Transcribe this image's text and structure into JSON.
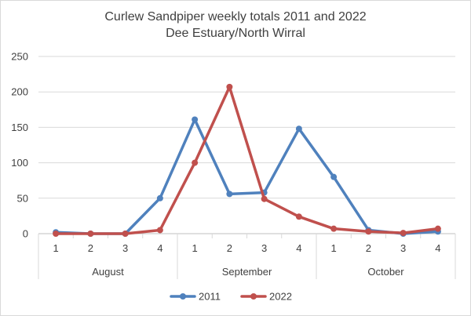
{
  "chart_data": {
    "type": "line",
    "title": "Curlew Sandpiper  weekly totals 2011 and 2022",
    "subtitle": "Dee Estuary/North Wirral",
    "x": [
      "1",
      "2",
      "3",
      "4",
      "1",
      "2",
      "3",
      "4",
      "1",
      "2",
      "3",
      "4"
    ],
    "groups": [
      {
        "label": "August",
        "count": 4
      },
      {
        "label": "September",
        "count": 4
      },
      {
        "label": "October",
        "count": 4
      }
    ],
    "ylim": [
      0,
      250
    ],
    "yticks": [
      0,
      50,
      100,
      150,
      200,
      250
    ],
    "grid": true,
    "legend_position": "bottom",
    "series": [
      {
        "name": "2011",
        "color": "#4f81bd",
        "values": [
          2,
          0,
          0,
          50,
          161,
          56,
          58,
          148,
          80,
          5,
          0,
          3
        ]
      },
      {
        "name": "2022",
        "color": "#c0504d",
        "values": [
          0,
          0,
          0,
          5,
          100,
          207,
          49,
          24,
          7,
          3,
          1,
          7
        ]
      }
    ]
  }
}
